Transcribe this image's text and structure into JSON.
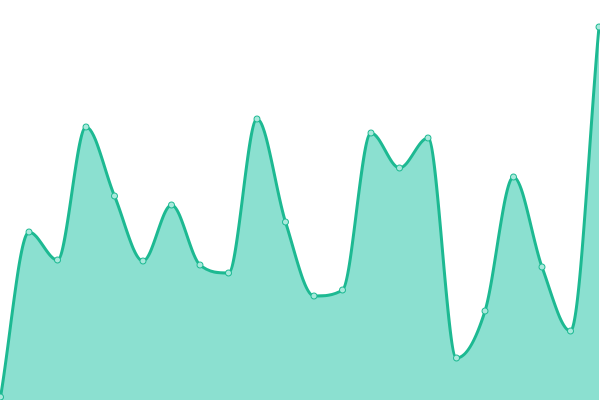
{
  "chart_data": {
    "type": "area",
    "title": "",
    "xlabel": "",
    "ylabel": "",
    "x": [
      0,
      1,
      2,
      3,
      4,
      5,
      6,
      7,
      8,
      9,
      10,
      11,
      12,
      13,
      14,
      15,
      16,
      17,
      18,
      19,
      20,
      21
    ],
    "values": [
      3,
      168,
      140,
      273,
      204,
      139,
      195,
      135,
      127,
      281,
      178,
      104,
      110,
      267,
      232,
      262,
      42,
      89,
      223,
      133,
      69,
      373
    ],
    "ylim": [
      0,
      400
    ],
    "grid": false,
    "smooth": true,
    "colors": {
      "line": "#1db992",
      "fill": "#8be0d0",
      "marker_fill": "#a9e9dc"
    }
  }
}
